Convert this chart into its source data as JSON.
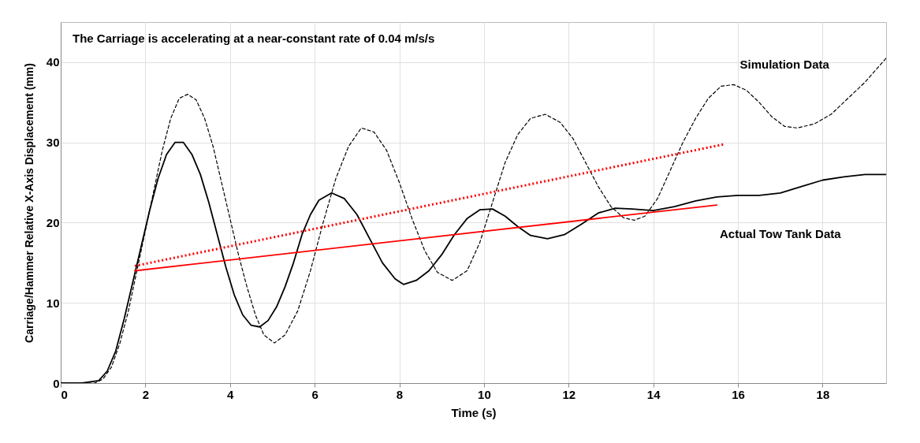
{
  "chart_data": {
    "type": "line",
    "xlabel": "Time (s)",
    "ylabel": "Carriage/Hammer Relative X-Axis Displacement  (mm)",
    "xlim": [
      0,
      19.5
    ],
    "xticks": [
      0,
      2,
      4,
      6,
      8,
      10,
      12,
      14,
      16,
      18
    ],
    "ylim": [
      0,
      45
    ],
    "yticks": [
      0,
      10,
      20,
      30,
      40
    ],
    "grid": true,
    "annotations": [
      "The Carriage is accelerating at a near-constant rate of 0.04 m/s/s"
    ],
    "series": [
      {
        "name": "Simulation Data",
        "color": "#000000",
        "line_style": "dashed",
        "x": [
          0,
          0.8,
          1.0,
          1.2,
          1.4,
          1.6,
          1.8,
          2.0,
          2.2,
          2.4,
          2.6,
          2.8,
          3.0,
          3.2,
          3.4,
          3.6,
          3.8,
          4.0,
          4.2,
          4.4,
          4.6,
          4.8,
          5.05,
          5.3,
          5.6,
          5.9,
          6.2,
          6.5,
          6.8,
          7.1,
          7.4,
          7.7,
          8.0,
          8.3,
          8.6,
          8.9,
          9.25,
          9.6,
          9.9,
          10.2,
          10.5,
          10.8,
          11.1,
          11.45,
          11.8,
          12.1,
          12.4,
          12.7,
          13.0,
          13.3,
          13.55,
          13.8,
          14.1,
          14.4,
          14.7,
          15.0,
          15.3,
          15.6,
          15.9,
          16.2,
          16.5,
          16.8,
          17.1,
          17.4,
          17.8,
          18.2,
          18.6,
          19.0,
          19.5
        ],
        "values": [
          0,
          0,
          0.5,
          2,
          5,
          9,
          14,
          19,
          24,
          29,
          33,
          35.5,
          36,
          35.3,
          33,
          29.5,
          25,
          20.5,
          16,
          12,
          8.5,
          6,
          5,
          6,
          9,
          14,
          20,
          25.5,
          29.5,
          31.8,
          31.3,
          29,
          25,
          20.5,
          16.5,
          13.8,
          12.8,
          14,
          17.5,
          22.5,
          27.5,
          31,
          33,
          33.5,
          32.5,
          30.5,
          27.5,
          24.5,
          22,
          20.6,
          20.3,
          20.8,
          23,
          26.5,
          30,
          33,
          35.5,
          37,
          37.2,
          36.5,
          35,
          33.2,
          32,
          31.8,
          32.3,
          33.5,
          35.5,
          37.5,
          40.5
        ]
      },
      {
        "name": "Actual Tow Tank Data",
        "color": "#000000",
        "line_style": "solid",
        "x": [
          0,
          0.5,
          0.9,
          1.1,
          1.3,
          1.5,
          1.7,
          1.9,
          2.1,
          2.3,
          2.5,
          2.7,
          2.9,
          3.1,
          3.3,
          3.5,
          3.7,
          3.9,
          4.1,
          4.3,
          4.5,
          4.7,
          4.9,
          5.1,
          5.3,
          5.5,
          5.7,
          5.9,
          6.1,
          6.4,
          6.7,
          7.0,
          7.3,
          7.6,
          7.9,
          8.1,
          8.4,
          8.7,
          9.0,
          9.3,
          9.6,
          9.9,
          10.2,
          10.5,
          10.8,
          11.1,
          11.5,
          11.9,
          12.3,
          12.7,
          13.1,
          13.5,
          14.0,
          14.5,
          15.0,
          15.5,
          16,
          16.5,
          17,
          17.5,
          18,
          18.5,
          19,
          19.5
        ],
        "values": [
          0,
          0,
          0.3,
          1.5,
          4,
          8,
          12.5,
          17,
          21.5,
          25.5,
          28.5,
          30,
          30,
          28.5,
          26,
          22.5,
          18.5,
          14.5,
          11,
          8.5,
          7.2,
          7,
          7.8,
          9.5,
          12,
          15,
          18.5,
          21,
          22.8,
          23.7,
          23,
          21,
          18,
          15,
          13,
          12.3,
          12.8,
          14,
          16,
          18.5,
          20.5,
          21.6,
          21.7,
          20.8,
          19.5,
          18.4,
          18,
          18.5,
          19.8,
          21.2,
          21.8,
          21.7,
          21.5,
          22,
          22.7,
          23.2,
          23.4,
          23.4,
          23.7,
          24.5,
          25.3,
          25.7,
          26,
          26
        ]
      },
      {
        "color": "#ff0000",
        "line_style": "dotted",
        "x": [
          1.75,
          15.7
        ],
        "values": [
          14.6,
          29.8
        ]
      },
      {
        "color": "#ff0000",
        "line_style": "solid",
        "x": [
          1.75,
          15.5
        ],
        "values": [
          14.0,
          22.2
        ]
      }
    ]
  }
}
